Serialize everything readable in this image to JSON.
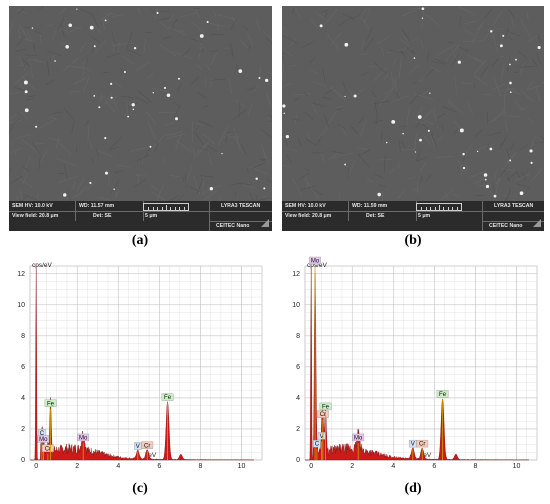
{
  "panels": [
    {
      "label": "a",
      "caption": "(a)"
    },
    {
      "label": "b",
      "caption": "(b)"
    },
    {
      "label": "c",
      "caption": "(c)"
    },
    {
      "label": "d",
      "caption": "(d)"
    }
  ],
  "sem": [
    {
      "hv": "SEM HV: 10.0 kV",
      "wd": "WD: 11.57 mm",
      "view_field": "View field: 20.8 μm",
      "det": "Det: SE",
      "scale": "5 μm",
      "instrument": "LYRA3 TESCAN",
      "org": "CEITEC Nano"
    },
    {
      "hv": "SEM HV: 10.0 kV",
      "wd": "WD: 11.59 mm",
      "view_field": "View field: 20.8 μm",
      "det": "Det: SE",
      "scale": "5 μm",
      "instrument": "LYRA3 TESCAN",
      "org": "CEITEC Nano"
    }
  ],
  "chart_data": [
    {
      "type": "area",
      "ylabel": "cps/eV",
      "xlabel": "keV",
      "xlim": [
        -0.3,
        11
      ],
      "ylim": [
        0,
        12.5
      ],
      "xticks": [
        0,
        2,
        4,
        6,
        8,
        10
      ],
      "yticks": [
        0,
        2,
        4,
        6,
        8,
        10,
        12
      ],
      "peaks": [
        {
          "element": "C",
          "x": 0.28,
          "y": 1.4
        },
        {
          "element": "Mo",
          "x": 0.35,
          "y": 1.0
        },
        {
          "element": "Cr",
          "x": 0.57,
          "y": 0.4
        },
        {
          "element": "Fe",
          "x": 0.7,
          "y": 3.3
        },
        {
          "element": "Mo",
          "x": 2.29,
          "y": 1.1
        },
        {
          "element": "V",
          "x": 4.95,
          "y": 0.55
        },
        {
          "element": "Cr",
          "x": 5.41,
          "y": 0.6
        },
        {
          "element": "Fe",
          "x": 6.4,
          "y": 3.7
        }
      ]
    },
    {
      "type": "area",
      "ylabel": "cps/eV",
      "xlabel": "keV",
      "xlim": [
        -0.3,
        11
      ],
      "ylim": [
        0,
        12.5
      ],
      "xticks": [
        0,
        2,
        4,
        6,
        8,
        10
      ],
      "yticks": [
        0,
        2,
        4,
        6,
        8,
        10,
        12
      ],
      "peaks": [
        {
          "element": "Mo",
          "x": 0.19,
          "y": 12.5
        },
        {
          "element": "C",
          "x": 0.28,
          "y": 0.7
        },
        {
          "element": "V",
          "x": 0.51,
          "y": 1.2
        },
        {
          "element": "Cr",
          "x": 0.57,
          "y": 2.6
        },
        {
          "element": "Fe",
          "x": 0.7,
          "y": 3.1
        },
        {
          "element": "Mo",
          "x": 2.29,
          "y": 1.1
        },
        {
          "element": "V",
          "x": 4.95,
          "y": 0.7
        },
        {
          "element": "Cr",
          "x": 5.41,
          "y": 0.7
        },
        {
          "element": "Fe",
          "x": 6.4,
          "y": 3.9
        }
      ]
    }
  ],
  "tag_colors": {
    "C": "#cfe0f7",
    "Mo": "#e6c6f0",
    "Fe": "#c9f0c4",
    "Cr": "#f6c9b8",
    "V": "#cfe0f7"
  }
}
